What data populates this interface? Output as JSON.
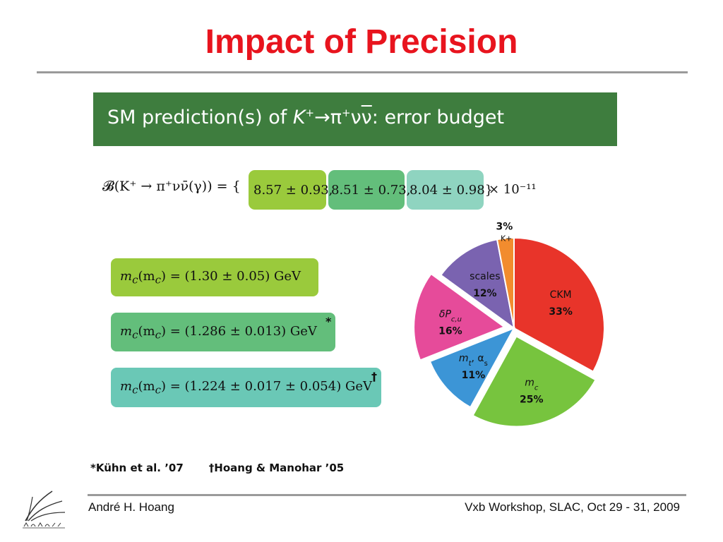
{
  "slide": {
    "title": "Impact of Precision",
    "banner": {
      "prefix": "SM prediction(s) of ",
      "k": "K",
      "k_sup": "+",
      "arrow": "→",
      "pi": "π",
      "pi_sup": "+",
      "nu": "ν",
      "nubar": "ν",
      "suffix": ": error budget"
    },
    "branching": {
      "lhs": "𝓑(K⁺ → π⁺νν̄(γ)) = {",
      "values": [
        "8.57 ± 0.93,",
        "8.51 ± 0.73,",
        "8.04 ± 0.98}"
      ],
      "rhs": "× 10⁻¹¹",
      "chip_colors": [
        "#9aca3c",
        "#63be7b",
        "#8fd4c0"
      ]
    },
    "mc_values": [
      {
        "lhs": "m",
        "sub": "c",
        "mid": "(m",
        "sub2": "c",
        "rhs": ") = (1.30 ± 0.05) GeV",
        "mark": "",
        "color": "#9aca3c"
      },
      {
        "lhs": "m",
        "sub": "c",
        "mid": "(m",
        "sub2": "c",
        "rhs": ") = (1.286 ± 0.013) GeV",
        "mark": "*",
        "color": "#63be7b"
      },
      {
        "lhs": "m",
        "sub": "c",
        "mid": "(m",
        "sub2": "c",
        "rhs": ") = (1.224 ± 0.017 ± 0.054) GeV",
        "mark": "†",
        "color": "#6ac8b6"
      }
    ],
    "references": [
      "*Kühn et al. ’07",
      "†Hoang & Manohar ’05"
    ],
    "footer": {
      "author": "André H. Hoang",
      "event": "Vxb Workshop, SLAC, Oct 29 - 31, 2009"
    }
  },
  "chart_data": {
    "type": "pie",
    "title": "",
    "slices": [
      {
        "label": "CKM",
        "value": 33,
        "value_label": "33%",
        "color": "#e8342a"
      },
      {
        "label": "m",
        "label_sub": "c",
        "value": 25,
        "value_label": "25%",
        "color": "#77c43e"
      },
      {
        "label": "m",
        "label_sub": "t",
        "label_extra": ", α",
        "label_extra_sub": "s",
        "value": 11,
        "value_label": "11%",
        "color": "#3c95d6"
      },
      {
        "label": "δP",
        "label_sub": "c,u",
        "value": 16,
        "value_label": "16%",
        "color": "#e64b9a"
      },
      {
        "label": "scales",
        "value": 12,
        "value_label": "12%",
        "color": "#7a63b0"
      },
      {
        "label": "K+",
        "value": 3,
        "value_label": "3%",
        "color": "#f28c2e"
      }
    ]
  }
}
